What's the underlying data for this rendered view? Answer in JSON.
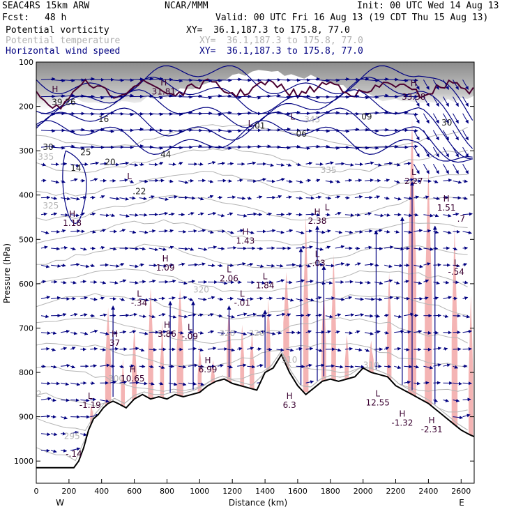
{
  "header": {
    "model": "SEAC4RS 15km ARW",
    "fcst_label": "Fcst:",
    "fcst_value": "48 h",
    "center": "NCAR/MMM",
    "init": "Init: 00 UTC Wed 14 Aug 13",
    "valid": "Valid: 00 UTC Fri 16 Aug 13 (19 CDT Thu 15 Aug 13)"
  },
  "fields": [
    {
      "name": "Potential vorticity",
      "xy": "XY=  36.1,187.3 to 175.8, 77.0",
      "color": "#000000"
    },
    {
      "name": "Potential temperature",
      "xy": "XY=  36.1,187.3 to 175.8, 77.0",
      "color": "#b0b0b0"
    },
    {
      "name": "Horizontal wind speed",
      "xy": "XY=  36.1,187.3 to 175.8, 77.0",
      "color": "#000080"
    }
  ],
  "colors": {
    "pv_shade": "#9a9a9a",
    "vertical_motion_shade": "#f4b4b4",
    "wind_contour": "#000080",
    "theta_contour": "#b4b4b4",
    "pv_contour": "#4a0030",
    "terrain": "#000000"
  },
  "chart_data": {
    "type": "cross-section",
    "ylabel": "Pressure (hPa)",
    "xlabel": "Distance (km)",
    "x_ticks": [
      0,
      200,
      400,
      600,
      800,
      1000,
      1200,
      1400,
      1600,
      1800,
      2000,
      2200,
      2400,
      2600
    ],
    "y_ticks": [
      100,
      200,
      300,
      400,
      500,
      600,
      700,
      800,
      900,
      1000
    ],
    "xlim": [
      0,
      2680
    ],
    "ylim": [
      100,
      1050
    ],
    "west_label": "W",
    "east_label": "E",
    "terrain_surface": {
      "x": [
        0,
        50,
        100,
        150,
        200,
        230,
        260,
        290,
        320,
        350,
        380,
        410,
        440,
        470,
        500,
        550,
        600,
        650,
        700,
        750,
        800,
        850,
        900,
        950,
        1000,
        1050,
        1100,
        1150,
        1200,
        1250,
        1300,
        1350,
        1400,
        1450,
        1500,
        1550,
        1600,
        1650,
        1700,
        1750,
        1800,
        1850,
        1900,
        1950,
        2000,
        2050,
        2100,
        2150,
        2200,
        2250,
        2300,
        2350,
        2400,
        2450,
        2500,
        2550,
        2600,
        2650,
        2680
      ],
      "p": [
        1015,
        1015,
        1015,
        1015,
        1015,
        1015,
        1000,
        970,
        930,
        905,
        895,
        880,
        870,
        865,
        870,
        880,
        860,
        850,
        860,
        855,
        860,
        850,
        855,
        850,
        845,
        830,
        820,
        815,
        825,
        830,
        835,
        840,
        800,
        790,
        760,
        800,
        830,
        850,
        835,
        820,
        815,
        820,
        815,
        810,
        790,
        800,
        805,
        810,
        830,
        840,
        850,
        860,
        870,
        885,
        900,
        915,
        930,
        940,
        945
      ]
    },
    "pv_labels": [
      {
        "x": 95,
        "p": 197,
        "text": "39.26"
      },
      {
        "x": 40,
        "p": 298,
        "text": "30"
      },
      {
        "x": 270,
        "p": 310,
        "text": "25"
      },
      {
        "x": 380,
        "p": 235,
        "text": "16"
      },
      {
        "x": 420,
        "p": 332,
        "text": "20"
      },
      {
        "x": 210,
        "p": 345,
        "text": "14"
      },
      {
        "x": 760,
        "p": 315,
        "text": "44"
      },
      {
        "x": 1320,
        "p": 250,
        "text": ".01"
      },
      {
        "x": 1590,
        "p": 268,
        "text": "06"
      },
      {
        "x": 1990,
        "p": 230,
        "text": "09"
      },
      {
        "x": 2480,
        "p": 243,
        "text": "30"
      },
      {
        "x": 590,
        "p": 398,
        "text": ".22"
      }
    ],
    "theta_labels": [
      {
        "x": 10,
        "p": 320,
        "text": "335"
      },
      {
        "x": 40,
        "p": 430,
        "text": "325"
      },
      {
        "x": 1740,
        "p": 350,
        "text": "335"
      },
      {
        "x": 1640,
        "p": 236,
        "text": "345"
      },
      {
        "x": 960,
        "p": 620,
        "text": "320"
      },
      {
        "x": 1120,
        "p": 718,
        "text": "320"
      },
      {
        "x": 1300,
        "p": 718,
        "text": "320"
      },
      {
        "x": 1500,
        "p": 778,
        "text": "310"
      },
      {
        "x": 440,
        "p": 820,
        "text": "300"
      },
      {
        "x": 170,
        "p": 950,
        "text": "295"
      },
      {
        "x": 2000,
        "p": 790,
        "text": "310"
      },
      {
        "x": 0,
        "p": 855,
        "text": "2"
      }
    ],
    "extrema": [
      {
        "x": 115,
        "p": 188,
        "kind": "H",
        "value": ""
      },
      {
        "x": 780,
        "p": 173,
        "kind": "H",
        "value": "31.81"
      },
      {
        "x": 1310,
        "p": 265,
        "kind": "L",
        "value": ""
      },
      {
        "x": 1570,
        "p": 250,
        "kind": "L",
        "value": ""
      },
      {
        "x": 2310,
        "p": 185,
        "kind": "",
        "value": "33.38"
      },
      {
        "x": 2310,
        "p": 175,
        "kind": "H",
        "value": ""
      },
      {
        "x": 570,
        "p": 385,
        "kind": "L",
        "value": ""
      },
      {
        "x": 2310,
        "p": 375,
        "kind": "L",
        "value": "2.27"
      },
      {
        "x": 2510,
        "p": 435,
        "kind": "H",
        "value": "1.51"
      },
      {
        "x": 2600,
        "p": 460,
        "kind": "",
        "value": ".7"
      },
      {
        "x": 220,
        "p": 470,
        "kind": "H",
        "value": "1.18"
      },
      {
        "x": 1280,
        "p": 510,
        "kind": "H",
        "value": "1.43"
      },
      {
        "x": 1720,
        "p": 465,
        "kind": "H",
        "value": "2.38"
      },
      {
        "x": 1780,
        "p": 455,
        "kind": "L",
        "value": ""
      },
      {
        "x": 1720,
        "p": 560,
        "kind": "L",
        "value": "-.03"
      },
      {
        "x": 790,
        "p": 570,
        "kind": "H",
        "value": "1.09"
      },
      {
        "x": 2570,
        "p": 580,
        "kind": "L",
        "value": "-.54"
      },
      {
        "x": 1180,
        "p": 595,
        "kind": "L",
        "value": "2.06"
      },
      {
        "x": 1400,
        "p": 610,
        "kind": "L",
        "value": "1.84"
      },
      {
        "x": 630,
        "p": 650,
        "kind": "L",
        "value": "-.34"
      },
      {
        "x": 1260,
        "p": 650,
        "kind": "L",
        "value": "-.01"
      },
      {
        "x": 800,
        "p": 720,
        "kind": "H",
        "value": "3.86"
      },
      {
        "x": 940,
        "p": 725,
        "kind": "L",
        "value": "-.09"
      },
      {
        "x": 480,
        "p": 740,
        "kind": "H",
        "value": "37"
      },
      {
        "x": 1050,
        "p": 800,
        "kind": "H",
        "value": "6.99"
      },
      {
        "x": 590,
        "p": 820,
        "kind": "H",
        "value": "10.65"
      },
      {
        "x": 1550,
        "p": 880,
        "kind": "H",
        "value": "6.3"
      },
      {
        "x": 2090,
        "p": 875,
        "kind": "L",
        "value": "12.55"
      },
      {
        "x": 2240,
        "p": 920,
        "kind": "H",
        "value": "-1.32"
      },
      {
        "x": 2420,
        "p": 935,
        "kind": "H",
        "value": "-2.31"
      },
      {
        "x": 330,
        "p": 880,
        "kind": "L",
        "value": "-1.19"
      },
      {
        "x": 230,
        "p": 990,
        "kind": "",
        "value": "-.14"
      }
    ],
    "grid": false,
    "legend": "top-left"
  }
}
